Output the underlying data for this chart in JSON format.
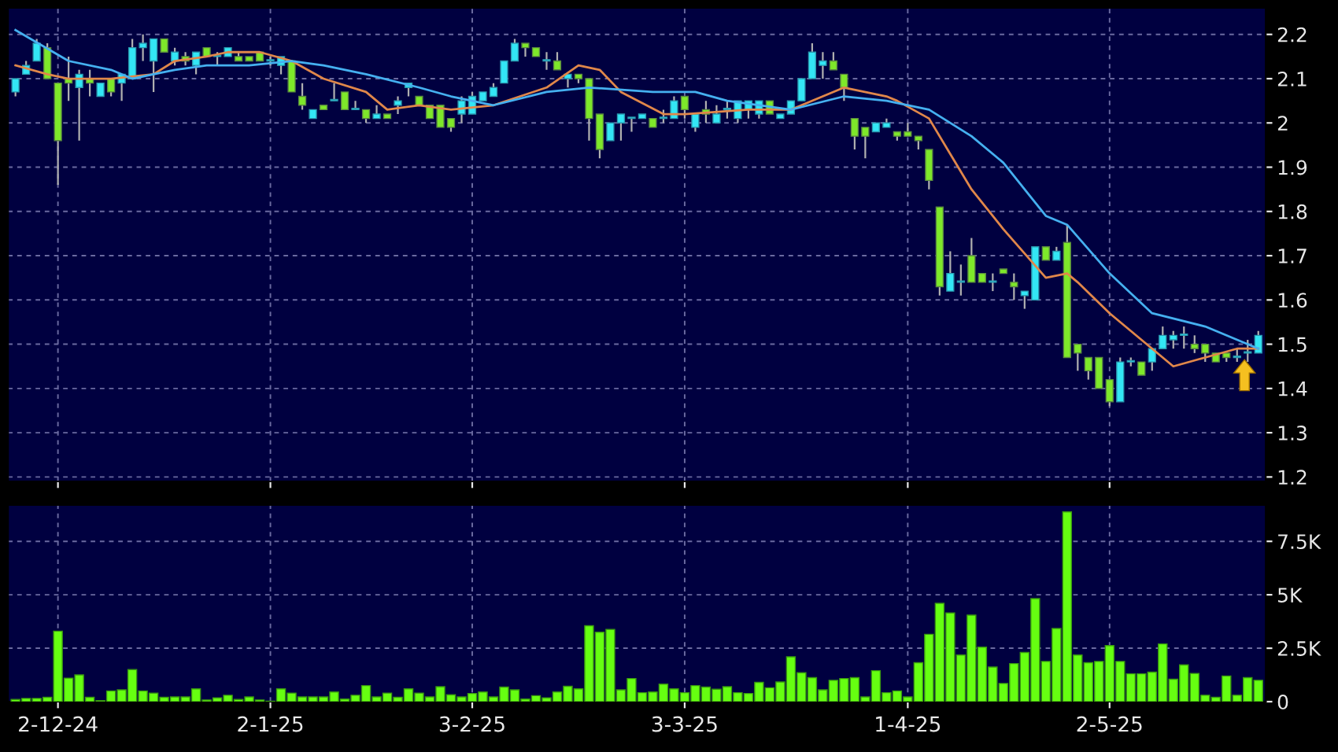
{
  "chart_data": [
    {
      "type": "candlestick",
      "categories": [
        null,
        null,
        null,
        null,
        null,
        null,
        null,
        null,
        null,
        null,
        null,
        null,
        null,
        null,
        null,
        null,
        null,
        null,
        null,
        null,
        null,
        null,
        null,
        null,
        null,
        null,
        null,
        null,
        null,
        null,
        null,
        null,
        null,
        null,
        null,
        null,
        null,
        null,
        null,
        null,
        null,
        null,
        null,
        null,
        null,
        null,
        null,
        null,
        null,
        null,
        null,
        null,
        null,
        null,
        null,
        null,
        null,
        null,
        null,
        null,
        null,
        null,
        null,
        null,
        null,
        null,
        null,
        null,
        null,
        null,
        null,
        null,
        null,
        null,
        null,
        null,
        null,
        null,
        null,
        null,
        null,
        null,
        null,
        null,
        null,
        null,
        null,
        null,
        null,
        null,
        null,
        null,
        null,
        null,
        null,
        null,
        null,
        null,
        null,
        null,
        null,
        null,
        null,
        null,
        null,
        null,
        null,
        null,
        null,
        null,
        null,
        null,
        null,
        null,
        null,
        null,
        null,
        null
      ],
      "ohlc": [
        [
          2.07,
          2.1,
          2.06,
          2.1
        ],
        [
          2.11,
          2.14,
          2.11,
          2.13
        ],
        [
          2.14,
          2.19,
          2.14,
          2.18
        ],
        [
          2.17,
          2.18,
          2.1,
          2.1
        ],
        [
          2.09,
          2.09,
          1.86,
          1.96
        ],
        [
          2.1,
          2.15,
          2.05,
          2.09
        ],
        [
          2.08,
          2.12,
          1.96,
          2.11
        ],
        [
          2.1,
          2.12,
          2.06,
          2.09
        ],
        [
          2.06,
          2.09,
          2.06,
          2.09
        ],
        [
          2.1,
          2.1,
          2.06,
          2.07
        ],
        [
          2.09,
          2.11,
          2.05,
          2.11
        ],
        [
          2.1,
          2.19,
          2.1,
          2.17
        ],
        [
          2.17,
          2.2,
          2.14,
          2.18
        ],
        [
          2.14,
          2.19,
          2.07,
          2.19
        ],
        [
          2.19,
          2.19,
          2.16,
          2.16
        ],
        [
          2.14,
          2.17,
          2.13,
          2.16
        ],
        [
          2.15,
          2.16,
          2.13,
          2.14
        ],
        [
          2.13,
          2.16,
          2.11,
          2.16
        ],
        [
          2.17,
          2.17,
          2.15,
          2.15
        ],
        [
          2.15,
          2.16,
          2.13,
          2.15
        ],
        [
          2.15,
          2.17,
          2.15,
          2.17
        ],
        [
          2.15,
          2.16,
          2.14,
          2.14
        ],
        [
          2.15,
          2.15,
          2.14,
          2.14
        ],
        [
          2.16,
          2.16,
          2.14,
          2.14
        ],
        [
          2.14,
          2.15,
          2.13,
          2.14
        ],
        [
          2.13,
          2.15,
          2.11,
          2.15
        ],
        [
          2.14,
          2.14,
          2.07,
          2.07
        ],
        [
          2.06,
          2.09,
          2.03,
          2.04
        ],
        [
          2.01,
          2.03,
          2.01,
          2.03
        ],
        [
          2.04,
          2.04,
          2.03,
          2.03
        ],
        [
          2.05,
          2.09,
          2.05,
          2.05
        ],
        [
          2.07,
          2.07,
          2.03,
          2.03
        ],
        [
          2.03,
          2.05,
          2.03,
          2.03
        ],
        [
          2.03,
          2.03,
          2.0,
          2.01
        ],
        [
          2.01,
          2.04,
          2.01,
          2.02
        ],
        [
          2.02,
          2.02,
          2.01,
          2.01
        ],
        [
          2.04,
          2.06,
          2.02,
          2.05
        ],
        [
          2.08,
          2.09,
          2.06,
          2.09
        ],
        [
          2.06,
          2.06,
          2.04,
          2.04
        ],
        [
          2.04,
          2.04,
          2.01,
          2.01
        ],
        [
          2.04,
          2.04,
          1.99,
          1.99
        ],
        [
          2.01,
          2.01,
          1.98,
          1.99
        ],
        [
          2.02,
          2.06,
          2.0,
          2.05
        ],
        [
          2.02,
          2.07,
          2.02,
          2.06
        ],
        [
          2.05,
          2.07,
          2.05,
          2.07
        ],
        [
          2.06,
          2.09,
          2.06,
          2.08
        ],
        [
          2.09,
          2.14,
          2.09,
          2.14
        ],
        [
          2.14,
          2.19,
          2.14,
          2.18
        ],
        [
          2.18,
          2.18,
          2.15,
          2.17
        ],
        [
          2.17,
          2.17,
          2.15,
          2.15
        ],
        [
          2.14,
          2.16,
          2.12,
          2.14
        ],
        [
          2.14,
          2.16,
          2.12,
          2.12
        ],
        [
          2.1,
          2.11,
          2.08,
          2.11
        ],
        [
          2.11,
          2.11,
          2.09,
          2.1
        ],
        [
          2.1,
          2.1,
          1.96,
          2.01
        ],
        [
          2.02,
          2.02,
          1.92,
          1.94
        ],
        [
          1.96,
          2.0,
          1.96,
          2.0
        ],
        [
          2.0,
          2.02,
          1.96,
          2.02
        ],
        [
          2.01,
          2.01,
          1.98,
          2.01
        ],
        [
          2.01,
          2.02,
          2.01,
          2.02
        ],
        [
          2.01,
          2.01,
          1.99,
          1.99
        ],
        [
          2.01,
          2.03,
          2.0,
          2.01
        ],
        [
          2.01,
          2.06,
          2.01,
          2.05
        ],
        [
          2.06,
          2.06,
          2.01,
          2.03
        ],
        [
          1.99,
          2.02,
          1.98,
          2.02
        ],
        [
          2.03,
          2.05,
          2.0,
          2.02
        ],
        [
          2.0,
          2.04,
          2.0,
          2.02
        ],
        [
          2.03,
          2.05,
          2.01,
          2.03
        ],
        [
          2.01,
          2.05,
          2.0,
          2.05
        ],
        [
          2.03,
          2.05,
          2.01,
          2.05
        ],
        [
          2.02,
          2.05,
          2.01,
          2.05
        ],
        [
          2.05,
          2.05,
          2.02,
          2.02
        ],
        [
          2.01,
          2.02,
          2.01,
          2.02
        ],
        [
          2.02,
          2.05,
          2.02,
          2.05
        ],
        [
          2.05,
          2.1,
          2.05,
          2.1
        ],
        [
          2.1,
          2.18,
          2.1,
          2.16
        ],
        [
          2.13,
          2.16,
          2.1,
          2.14
        ],
        [
          2.14,
          2.16,
          2.12,
          2.12
        ],
        [
          2.11,
          2.11,
          2.05,
          2.08
        ],
        [
          2.01,
          2.01,
          1.94,
          1.97
        ],
        [
          1.99,
          1.99,
          1.92,
          1.97
        ],
        [
          1.98,
          2.0,
          1.98,
          2.0
        ],
        [
          1.99,
          2.01,
          1.99,
          2.0
        ],
        [
          1.98,
          1.98,
          1.96,
          1.97
        ],
        [
          1.98,
          2.0,
          1.97,
          1.97
        ],
        [
          1.97,
          1.97,
          1.94,
          1.96
        ],
        [
          1.94,
          1.94,
          1.85,
          1.87
        ],
        [
          1.81,
          1.81,
          1.61,
          1.63
        ],
        [
          1.62,
          1.71,
          1.62,
          1.66
        ],
        [
          1.64,
          1.68,
          1.61,
          1.64
        ],
        [
          1.7,
          1.74,
          1.64,
          1.64
        ],
        [
          1.66,
          1.66,
          1.64,
          1.64
        ],
        [
          1.64,
          1.66,
          1.62,
          1.64
        ],
        [
          1.67,
          1.67,
          1.66,
          1.66
        ],
        [
          1.64,
          1.66,
          1.6,
          1.63
        ],
        [
          1.61,
          1.62,
          1.58,
          1.62
        ],
        [
          1.6,
          1.72,
          1.6,
          1.72
        ],
        [
          1.72,
          1.72,
          1.69,
          1.69
        ],
        [
          1.69,
          1.72,
          1.69,
          1.71
        ],
        [
          1.73,
          1.77,
          1.47,
          1.47
        ],
        [
          1.5,
          1.5,
          1.44,
          1.48
        ],
        [
          1.47,
          1.47,
          1.42,
          1.44
        ],
        [
          1.47,
          1.47,
          1.4,
          1.4
        ],
        [
          1.42,
          1.42,
          1.36,
          1.37
        ],
        [
          1.37,
          1.47,
          1.37,
          1.46
        ],
        [
          1.46,
          1.47,
          1.45,
          1.46
        ],
        [
          1.46,
          1.46,
          1.43,
          1.43
        ],
        [
          1.46,
          1.49,
          1.44,
          1.49
        ],
        [
          1.49,
          1.54,
          1.49,
          1.52
        ],
        [
          1.51,
          1.53,
          1.49,
          1.52
        ],
        [
          1.52,
          1.54,
          1.49,
          1.52
        ],
        [
          1.5,
          1.52,
          1.48,
          1.49
        ],
        [
          1.5,
          1.5,
          1.46,
          1.48
        ],
        [
          1.48,
          1.48,
          1.46,
          1.46
        ],
        [
          1.48,
          1.48,
          1.46,
          1.47
        ],
        [
          1.47,
          1.49,
          1.46,
          1.47
        ],
        [
          1.48,
          1.51,
          1.46,
          1.48
        ],
        [
          1.48,
          1.53,
          1.48,
          1.52
        ]
      ],
      "colors": [
        "#33e6f5",
        "#33e6f5",
        "#33e6f5",
        "#7ee82a",
        "#7ee82a",
        "#7ee82a",
        "#33e6f5",
        "#7ee82a",
        "#33e6f5",
        "#7ee82a",
        "#33e6f5",
        "#33e6f5",
        "#33e6f5",
        "#33e6f5",
        "#7ee82a",
        "#33e6f5",
        "#7ee82a",
        "#33e6f5",
        "#7ee82a",
        "#33e6f5",
        "#33e6f5",
        "#7ee82a",
        "#7ee82a",
        "#7ee82a",
        "#33e6f5",
        "#33e6f5",
        "#7ee82a",
        "#7ee82a",
        "#33e6f5",
        "#7ee82a",
        "#33e6f5",
        "#7ee82a",
        "#33e6f5",
        "#7ee82a",
        "#33e6f5",
        "#7ee82a",
        "#33e6f5",
        "#33e6f5",
        "#7ee82a",
        "#7ee82a",
        "#7ee82a",
        "#7ee82a",
        "#33e6f5",
        "#33e6f5",
        "#33e6f5",
        "#33e6f5",
        "#33e6f5",
        "#33e6f5",
        "#7ee82a",
        "#7ee82a",
        "#33e6f5",
        "#7ee82a",
        "#33e6f5",
        "#7ee82a",
        "#7ee82a",
        "#7ee82a",
        "#33e6f5",
        "#33e6f5",
        "#33e6f5",
        "#33e6f5",
        "#7ee82a",
        "#33e6f5",
        "#33e6f5",
        "#7ee82a",
        "#33e6f5",
        "#7ee82a",
        "#33e6f5",
        "#33e6f5",
        "#33e6f5",
        "#33e6f5",
        "#33e6f5",
        "#7ee82a",
        "#33e6f5",
        "#33e6f5",
        "#33e6f5",
        "#33e6f5",
        "#33e6f5",
        "#7ee82a",
        "#7ee82a",
        "#7ee82a",
        "#7ee82a",
        "#33e6f5",
        "#33e6f5",
        "#7ee82a",
        "#7ee82a",
        "#7ee82a",
        "#7ee82a",
        "#7ee82a",
        "#33e6f5",
        "#33e6f5",
        "#7ee82a",
        "#7ee82a",
        "#33e6f5",
        "#7ee82a",
        "#7ee82a",
        "#33e6f5",
        "#33e6f5",
        "#7ee82a",
        "#33e6f5",
        "#7ee82a",
        "#7ee82a",
        "#7ee82a",
        "#7ee82a",
        "#7ee82a",
        "#33e6f5",
        "#33e6f5",
        "#7ee82a",
        "#33e6f5",
        "#33e6f5",
        "#33e6f5",
        "#33e6f5",
        "#7ee82a",
        "#7ee82a",
        "#7ee82a",
        "#7ee82a",
        "#33e6f5",
        "#33e6f5",
        "#33e6f5"
      ],
      "series": [
        {
          "type": "line",
          "color": "#e0874a",
          "values": [
            2.13,
            null,
            null,
            2.11,
            null,
            2.1,
            null,
            null,
            null,
            2.1,
            null,
            null,
            null,
            2.11,
            null,
            2.14,
            null,
            null,
            2.15,
            null,
            2.16,
            null,
            null,
            2.16,
            null,
            null,
            2.14,
            null,
            null,
            2.1,
            null,
            null,
            null,
            2.07,
            null,
            2.03,
            null,
            null,
            2.04,
            null,
            null,
            2.03,
            null,
            null,
            null,
            2.04,
            null,
            null,
            null,
            null,
            2.08,
            null,
            null,
            2.13,
            null,
            2.12,
            null,
            2.07,
            null,
            null,
            null,
            2.02,
            null,
            2.02,
            null,
            null,
            null,
            null,
            null,
            2.03,
            null,
            null,
            null,
            2.03,
            null,
            null,
            null,
            null,
            2.08,
            null,
            null,
            null,
            2.06,
            2.05,
            null,
            null,
            2.01,
            null,
            1.93,
            null,
            1.85,
            null,
            null,
            1.76,
            null,
            null,
            null,
            1.65,
            null,
            1.66,
            1.64,
            null,
            null,
            1.57,
            null,
            null,
            1.51,
            null,
            null,
            1.45,
            null,
            null,
            1.47,
            null,
            null,
            1.49,
            null,
            1.49
          ]
        },
        {
          "type": "line",
          "color": "#45b0f0",
          "values": [
            2.21,
            null,
            null,
            null,
            null,
            2.14,
            null,
            null,
            null,
            2.12,
            null,
            2.1,
            null,
            2.11,
            null,
            2.12,
            null,
            null,
            2.13,
            null,
            2.13,
            null,
            2.13,
            null,
            null,
            null,
            2.14,
            null,
            null,
            2.13,
            null,
            null,
            null,
            2.11,
            null,
            null,
            null,
            null,
            2.08,
            null,
            null,
            2.06,
            null,
            null,
            null,
            2.04,
            null,
            null,
            null,
            null,
            2.07,
            null,
            null,
            null,
            2.08,
            null,
            null,
            null,
            null,
            null,
            2.07,
            null,
            null,
            null,
            2.07,
            null,
            null,
            2.05,
            null,
            null,
            null,
            null,
            null,
            2.03,
            null,
            null,
            null,
            null,
            2.06,
            null,
            null,
            null,
            2.05,
            null,
            null,
            null,
            2.03,
            null,
            null,
            null,
            1.97,
            null,
            null,
            1.91,
            null,
            null,
            null,
            1.79,
            null,
            1.77,
            null,
            null,
            null,
            1.66,
            null,
            null,
            null,
            1.57,
            null,
            null,
            null,
            null,
            1.54,
            null,
            null,
            null,
            null,
            1.49
          ]
        }
      ],
      "ylim": [
        1.19,
        2.26
      ],
      "yticks": [
        1.2,
        1.3,
        1.4,
        1.5,
        1.6,
        1.7,
        1.8,
        1.9,
        2,
        2.1,
        2.2
      ],
      "grid": true,
      "tick_labels": "y"
    },
    {
      "type": "bar",
      "categories": [
        null,
        null,
        null,
        null,
        "2-12-24",
        null,
        null,
        null,
        null,
        null,
        null,
        null,
        null,
        null,
        null,
        null,
        null,
        null,
        null,
        null,
        null,
        null,
        null,
        null,
        "2-1-25",
        null,
        null,
        null,
        null,
        null,
        null,
        null,
        null,
        null,
        null,
        null,
        null,
        null,
        null,
        null,
        null,
        null,
        null,
        "3-2-25",
        null,
        null,
        null,
        null,
        null,
        null,
        null,
        null,
        null,
        null,
        null,
        null,
        null,
        null,
        null,
        null,
        null,
        null,
        null,
        "3-3-25",
        null,
        null,
        null,
        null,
        null,
        null,
        null,
        null,
        null,
        null,
        null,
        null,
        null,
        null,
        null,
        null,
        null,
        null,
        null,
        null,
        "1-4-25",
        null,
        null,
        null,
        null,
        null,
        null,
        null,
        null,
        null,
        null,
        null,
        null,
        null,
        null,
        null,
        null,
        null,
        null,
        "2-5-25",
        null,
        null,
        null,
        null,
        null,
        null,
        null,
        null,
        null,
        null,
        null,
        null,
        null,
        null
      ],
      "values": [
        100,
        150,
        150,
        200,
        3300,
        1100,
        1250,
        200,
        50,
        500,
        550,
        1500,
        500,
        400,
        200,
        220,
        220,
        600,
        80,
        180,
        300,
        100,
        220,
        80,
        20,
        600,
        400,
        220,
        220,
        220,
        450,
        120,
        300,
        750,
        220,
        400,
        200,
        600,
        400,
        220,
        700,
        320,
        220,
        380,
        450,
        220,
        680,
        550,
        120,
        280,
        180,
        450,
        720,
        600,
        3550,
        3250,
        3380,
        550,
        1080,
        420,
        450,
        820,
        600,
        420,
        750,
        680,
        580,
        700,
        420,
        380,
        900,
        650,
        920,
        2100,
        1350,
        1120,
        550,
        1000,
        1080,
        1120,
        220,
        1450,
        420,
        500,
        220,
        1820,
        3150,
        4600,
        4150,
        2180,
        4050,
        2550,
        1620,
        850,
        1780,
        2300,
        4820,
        1880,
        3420,
        8880,
        2180,
        1820,
        1880,
        2620,
        1880,
        1300,
        1300,
        1380,
        2700,
        1050,
        1720,
        1320,
        300,
        200,
        1200,
        300,
        1120,
        1000
      ],
      "color": "#66ff11",
      "ylim": [
        0,
        9200
      ],
      "yticks": [
        0,
        {
          "value": 2500,
          "label": "2.5K"
        },
        {
          "value": 5000,
          "label": "5K"
        },
        {
          "value": 7500,
          "label": "7.5K"
        }
      ],
      "grid": true
    }
  ]
}
